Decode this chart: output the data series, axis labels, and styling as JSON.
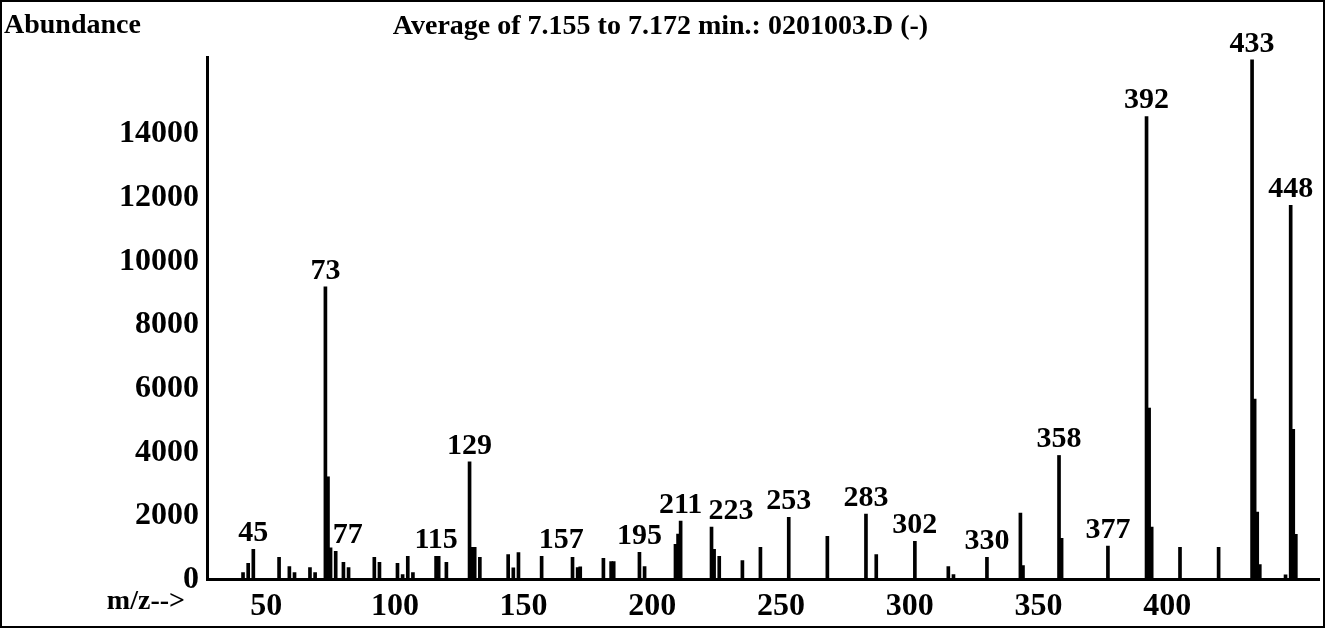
{
  "chart_data": {
    "type": "bar",
    "title": "Average of 7.155 to 7.172 min.: 0201003.D (-)",
    "ylabel": "Abundance",
    "xlabel": "m/z-->",
    "x": [
      41,
      43,
      45,
      55,
      59,
      61,
      67,
      69,
      73,
      74,
      75,
      77,
      80,
      82,
      92,
      94,
      101,
      103,
      105,
      107,
      116,
      117,
      120,
      129,
      130,
      131,
      133,
      144,
      146,
      148,
      157,
      169,
      171,
      172,
      181,
      184,
      185,
      195,
      197,
      209,
      210,
      211,
      223,
      224,
      226,
      235,
      242,
      253,
      268,
      283,
      287,
      302,
      315,
      317,
      330,
      343,
      344,
      358,
      359,
      377,
      392,
      393,
      394,
      405,
      420,
      433,
      434,
      435,
      436,
      446,
      448,
      449,
      450
    ],
    "values": [
      220,
      510,
      950,
      700,
      410,
      220,
      380,
      220,
      9200,
      3230,
      1000,
      890,
      540,
      380,
      700,
      540,
      510,
      160,
      730,
      220,
      730,
      730,
      540,
      3700,
      1010,
      1010,
      700,
      790,
      370,
      850,
      730,
      700,
      380,
      400,
      670,
      570,
      570,
      860,
      410,
      1110,
      1430,
      1840,
      1650,
      950,
      730,
      600,
      1010,
      1960,
      1360,
      2060,
      790,
      1200,
      410,
      160,
      700,
      2090,
      440,
      3900,
      1300,
      1050,
      14550,
      5390,
      1650,
      1010,
      1010,
      16330,
      5670,
      2120,
      470,
      150,
      11760,
      4720,
      1420
    ],
    "color": "#000000",
    "xlim": [
      27,
      459
    ],
    "ylim": [
      0,
      16400
    ],
    "xticks": [
      50,
      100,
      150,
      200,
      250,
      300,
      350,
      400
    ],
    "yticks": [
      0,
      2000,
      4000,
      6000,
      8000,
      10000,
      12000,
      14000
    ],
    "grid": false,
    "legend": false,
    "annotations": [
      {
        "text": "45",
        "x": 45,
        "y": 950
      },
      {
        "text": "73",
        "x": 73,
        "y": 9200
      },
      {
        "text": "77",
        "x": 77,
        "y": 890
      },
      {
        "text": "115",
        "x": 116,
        "y": 730
      },
      {
        "text": "129",
        "x": 129,
        "y": 3700
      },
      {
        "text": "157",
        "x": 157,
        "y": 730
      },
      {
        "text": "195",
        "x": 195,
        "y": 860
      },
      {
        "text": "211",
        "x": 211,
        "y": 1840
      },
      {
        "text": "223",
        "x": 223,
        "y": 1650
      },
      {
        "text": "253",
        "x": 253,
        "y": 1960
      },
      {
        "text": "283",
        "x": 283,
        "y": 2060
      },
      {
        "text": "302",
        "x": 302,
        "y": 1200
      },
      {
        "text": "330",
        "x": 330,
        "y": 700
      },
      {
        "text": "358",
        "x": 358,
        "y": 3900
      },
      {
        "text": "377",
        "x": 377,
        "y": 1050
      },
      {
        "text": "392",
        "x": 392,
        "y": 14550
      },
      {
        "text": "433",
        "x": 433,
        "y": 16330
      },
      {
        "text": "448",
        "x": 448,
        "y": 11760
      }
    ]
  }
}
